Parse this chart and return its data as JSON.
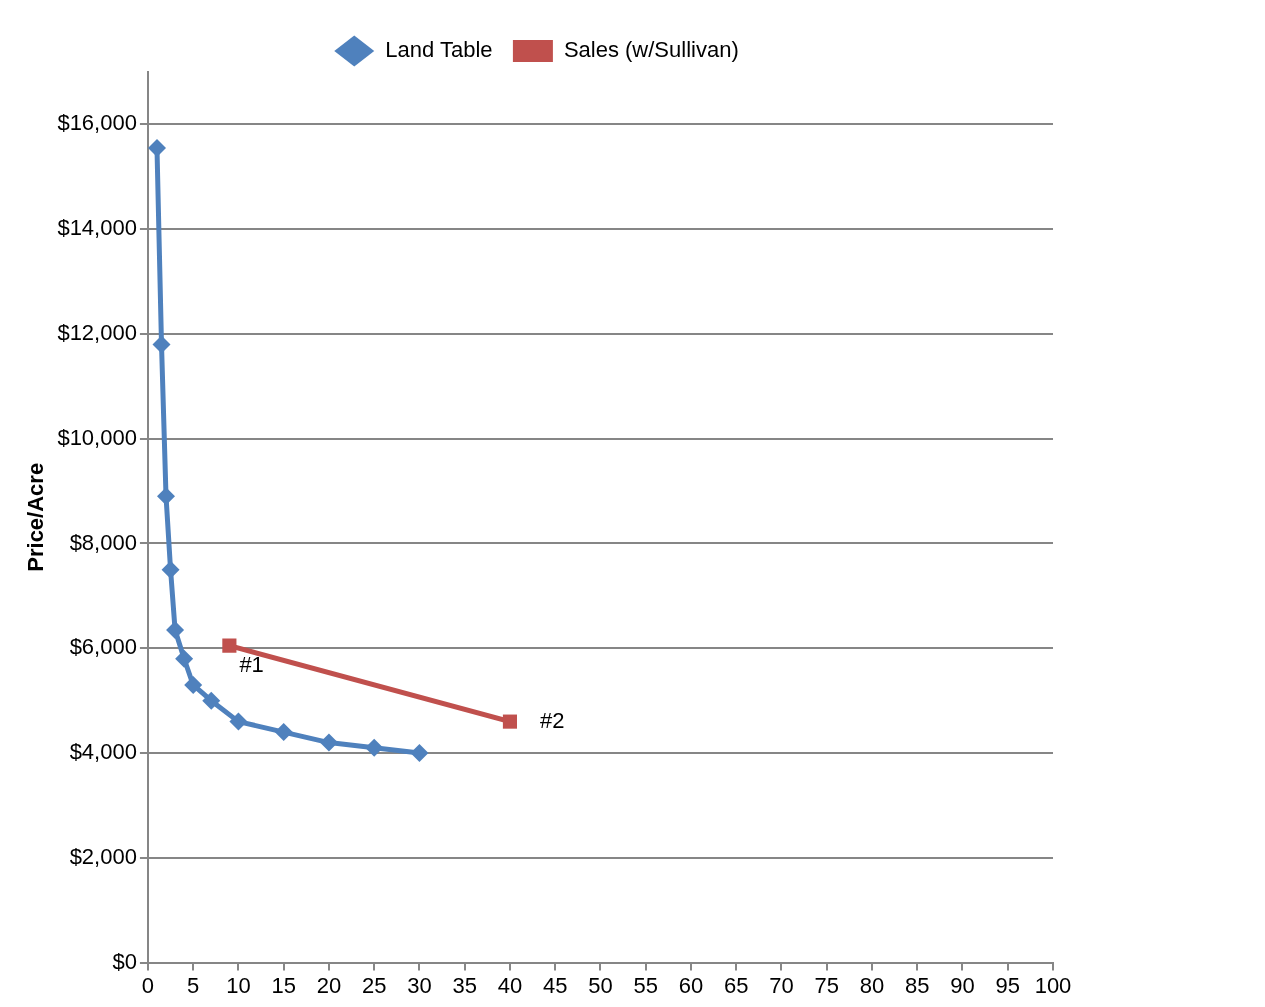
{
  "chart_data": {
    "type": "line",
    "ylabel": "Price/Acre",
    "series": [
      {
        "name": "Land Table",
        "color": "#4f81bd",
        "marker": "diamond",
        "x": [
          1,
          1.5,
          2,
          2.5,
          3,
          4,
          5,
          7,
          10,
          15,
          20,
          25,
          30
        ],
        "values": [
          15550,
          11800,
          8900,
          7500,
          6350,
          5800,
          5300,
          5000,
          4600,
          4400,
          4200,
          4100,
          4000
        ]
      },
      {
        "name": "Sales (w/Sullivan)",
        "color": "#c0504d",
        "marker": "square",
        "x": [
          9,
          40
        ],
        "values": [
          6050,
          4600
        ]
      }
    ],
    "annotations": [
      {
        "text": "#1",
        "x": 9,
        "y": 6050
      },
      {
        "text": "#2",
        "x": 40,
        "y": 4600
      }
    ],
    "xlim": [
      0,
      100
    ],
    "xticks": [
      0,
      5,
      10,
      15,
      20,
      25,
      30,
      35,
      40,
      45,
      50,
      55,
      60,
      65,
      70,
      75,
      80,
      85,
      90,
      95,
      100
    ],
    "ylim": [
      0,
      17000
    ],
    "yticks": [
      {
        "value": 0,
        "label": "$0"
      },
      {
        "value": 2000,
        "label": "$2,000"
      },
      {
        "value": 4000,
        "label": "$4,000"
      },
      {
        "value": 6000,
        "label": "$6,000"
      },
      {
        "value": 8000,
        "label": "$8,000"
      },
      {
        "value": 10000,
        "label": "$10,000"
      },
      {
        "value": 12000,
        "label": "$12,000"
      },
      {
        "value": 14000,
        "label": "$14,000"
      },
      {
        "value": 16000,
        "label": "$16,000"
      }
    ],
    "grid": "y",
    "legend": "top",
    "line_style": "solid"
  }
}
